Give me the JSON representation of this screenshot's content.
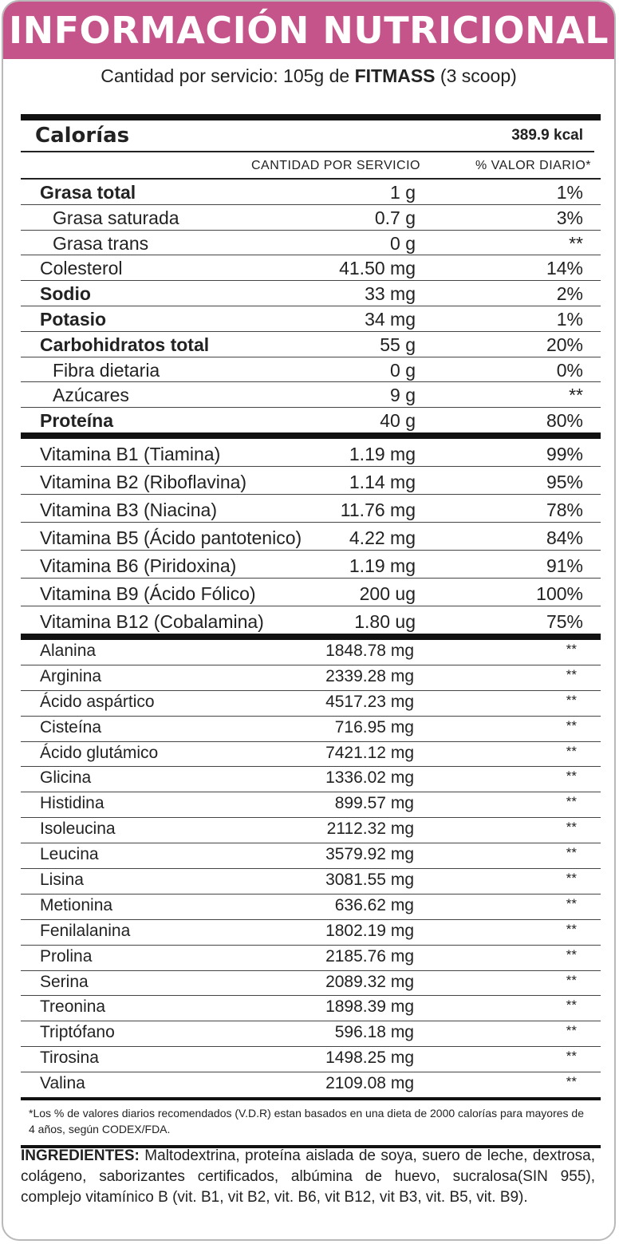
{
  "header": {
    "title": "INFORMACIÓN NUTRICIONAL"
  },
  "serving": {
    "prefix": "Cantidad por servicio: 105g de",
    "brand": "FITMASS",
    "suffix": "(3 scoop)"
  },
  "calories": {
    "label": "Calorías",
    "value": "389.9 kcal"
  },
  "columns": {
    "amount": "CANTIDAD POR SERVICIO",
    "daily": "% VALOR DIARIO*"
  },
  "macros": [
    {
      "name": "Grasa total",
      "amount": "1 g",
      "pct": "1%"
    },
    {
      "name": "Grasa saturada",
      "amount": "0.7 g",
      "pct": "3%"
    },
    {
      "name": "Grasa trans",
      "amount": "0 g",
      "pct": "**"
    },
    {
      "name": "Colesterol",
      "amount": "41.50 mg",
      "pct": "14%"
    },
    {
      "name": "Sodio",
      "amount": "33 mg",
      "pct": "2%"
    },
    {
      "name": "Potasio",
      "amount": "34 mg",
      "pct": "1%"
    },
    {
      "name": "Carbohidratos total",
      "amount": "55 g",
      "pct": "20%"
    },
    {
      "name": "Fibra dietaria",
      "amount": "0 g",
      "pct": "0%"
    },
    {
      "name": "Azúcares",
      "amount": "9 g",
      "pct": "**"
    },
    {
      "name": "Proteína",
      "amount": "40 g",
      "pct": "80%"
    }
  ],
  "vitamins": [
    {
      "name": "Vitamina B1 (Tiamina)",
      "amount": "1.19 mg",
      "pct": "99%"
    },
    {
      "name": "Vitamina B2 (Riboflavina)",
      "amount": "1.14 mg",
      "pct": "95%"
    },
    {
      "name": "Vitamina B3 (Niacina)",
      "amount": "11.76 mg",
      "pct": "78%"
    },
    {
      "name": "Vitamina B5 (Ácido pantotenico)",
      "amount": "4.22 mg",
      "pct": "84%"
    },
    {
      "name": "Vitamina B6 (Piridoxina)",
      "amount": "1.19 mg",
      "pct": "91%"
    },
    {
      "name": "Vitamina B9 (Ácido Fólico)",
      "amount": "200 ug",
      "pct": "100%"
    },
    {
      "name": "Vitamina B12 (Cobalamina)",
      "amount": "1.80 ug",
      "pct": "75%"
    }
  ],
  "aminos": [
    {
      "name": "Alanina",
      "amount": "1848.78 mg",
      "pct": "**"
    },
    {
      "name": "Arginina",
      "amount": "2339.28 mg",
      "pct": "**"
    },
    {
      "name": "Ácido aspártico",
      "amount": "4517.23 mg",
      "pct": "**"
    },
    {
      "name": "Cisteína",
      "amount": "716.95 mg",
      "pct": "**"
    },
    {
      "name": "Ácido glutámico",
      "amount": "7421.12 mg",
      "pct": "**"
    },
    {
      "name": "Glicina",
      "amount": "1336.02 mg",
      "pct": "**"
    },
    {
      "name": "Histidina",
      "amount": "899.57 mg",
      "pct": "**"
    },
    {
      "name": "Isoleucina",
      "amount": "2112.32 mg",
      "pct": "**"
    },
    {
      "name": "Leucina",
      "amount": "3579.92 mg",
      "pct": "**"
    },
    {
      "name": "Lisina",
      "amount": "3081.55 mg",
      "pct": "**"
    },
    {
      "name": "Metionina",
      "amount": "636.62 mg",
      "pct": "**"
    },
    {
      "name": "Fenilalanina",
      "amount": "1802.19 mg",
      "pct": "**"
    },
    {
      "name": "Prolina",
      "amount": "2185.76 mg",
      "pct": "**"
    },
    {
      "name": "Serina",
      "amount": "2089.32 mg",
      "pct": "**"
    },
    {
      "name": "Treonina",
      "amount": "1898.39 mg",
      "pct": "**"
    },
    {
      "name": "Triptófano",
      "amount": "596.18 mg",
      "pct": "**"
    },
    {
      "name": "Tirosina",
      "amount": "1498.25 mg",
      "pct": "**"
    },
    {
      "name": "Valina",
      "amount": "2109.08 mg",
      "pct": "**"
    }
  ],
  "footnote": "*Los % de valores diarios recomendados (V.D.R) estan basados en una dieta de 2000 calorías para mayores de 4 años, según CODEX/FDA.",
  "ingredients": {
    "label": "INGREDIENTES:",
    "text": "Maltodextrina, proteína aislada de soya, suero de leche, dextrosa, colágeno, saborizantes certificados, albúmina de huevo, sucralosa(SIN 955), complejo vitamínico B (vit. B1, vit B2, vit. B6, vit B12, vit B3, vit. B5, vit. B9)."
  },
  "colors": {
    "header_bg": "#c45489",
    "rules": "#111111"
  }
}
